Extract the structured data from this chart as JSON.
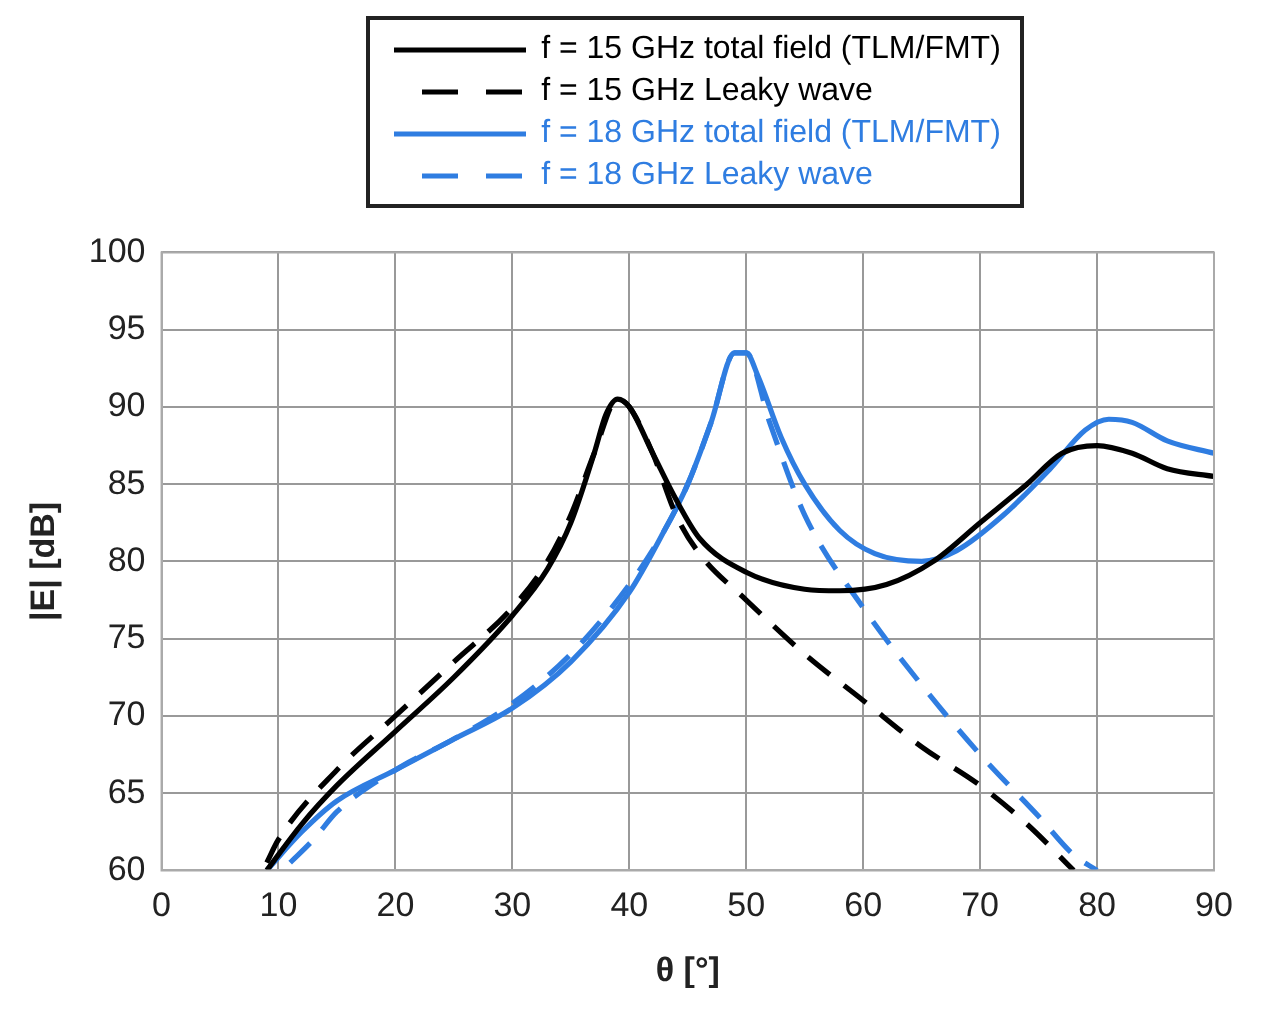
{
  "chart_data": {
    "type": "line",
    "xlabel": "θ [°]",
    "ylabel": "|E| [dB]",
    "xlim": [
      0,
      90
    ],
    "ylim": [
      60,
      100
    ],
    "xticks": [
      0,
      10,
      20,
      30,
      40,
      50,
      60,
      70,
      80,
      90
    ],
    "yticks": [
      60,
      65,
      70,
      75,
      80,
      85,
      90,
      95,
      100
    ],
    "grid": true,
    "legend": "top",
    "marker": "none",
    "series": [
      {
        "name": "f = 15 GHz total field (TLM/FMT)",
        "color": "#000000",
        "line_style": "solid",
        "x": [
          9,
          12,
          15,
          20,
          25,
          30,
          33,
          35,
          37,
          38,
          39,
          40,
          42,
          44,
          46,
          50,
          55,
          58,
          62,
          66,
          70,
          74,
          77,
          80,
          83,
          86,
          90
        ],
        "values": [
          60,
          63,
          65.5,
          69,
          72.5,
          76.5,
          79.5,
          82.5,
          87,
          89.5,
          90.5,
          90,
          87,
          84,
          81.5,
          79.3,
          78.2,
          78.1,
          78.5,
          80,
          82.5,
          85,
          87,
          87.5,
          87,
          86,
          85.5
        ]
      },
      {
        "name": "f = 15 GHz Leaky wave",
        "color": "#000000",
        "line_style": "dashed",
        "x": [
          9,
          10,
          15,
          20,
          25,
          30,
          33,
          35,
          37,
          39,
          40,
          42,
          44,
          46,
          50,
          55,
          60,
          65,
          70,
          74,
          78
        ],
        "values": [
          60.5,
          62,
          66.5,
          70,
          73.5,
          77,
          80,
          83,
          87,
          90.5,
          90,
          87,
          83,
          80.5,
          77.5,
          74,
          71,
          68,
          65.5,
          63,
          60
        ]
      },
      {
        "name": "f = 18 GHz total field (TLM/FMT)",
        "color": "#2f7de1",
        "line_style": "solid",
        "x": [
          9,
          12,
          15,
          20,
          25,
          30,
          35,
          40,
          43,
          45,
          47,
          49,
          50,
          51,
          53,
          55,
          58,
          61,
          65,
          68,
          72,
          76,
          79,
          81,
          83,
          86,
          90
        ],
        "values": [
          60,
          62.5,
          64.5,
          66.5,
          68.5,
          70.5,
          73.5,
          78,
          82,
          85,
          89,
          93.5,
          93.5,
          92,
          88,
          85,
          82,
          80.5,
          80,
          80.7,
          83,
          86,
          88.5,
          89.2,
          89,
          87.8,
          87
        ]
      },
      {
        "name": "f = 18 GHz Leaky wave",
        "color": "#2f7de1",
        "line_style": "dashed",
        "x": [
          11,
          13,
          15,
          20,
          25,
          30,
          35,
          40,
          43,
          45,
          47,
          49,
          50,
          52,
          55,
          60,
          65,
          70,
          75,
          78,
          80
        ],
        "values": [
          60.5,
          62,
          63.8,
          66.5,
          68.5,
          70.8,
          74,
          78.5,
          82,
          85,
          89,
          93.5,
          93.5,
          89,
          83,
          77,
          72,
          67.5,
          63.5,
          61,
          60
        ]
      }
    ]
  }
}
